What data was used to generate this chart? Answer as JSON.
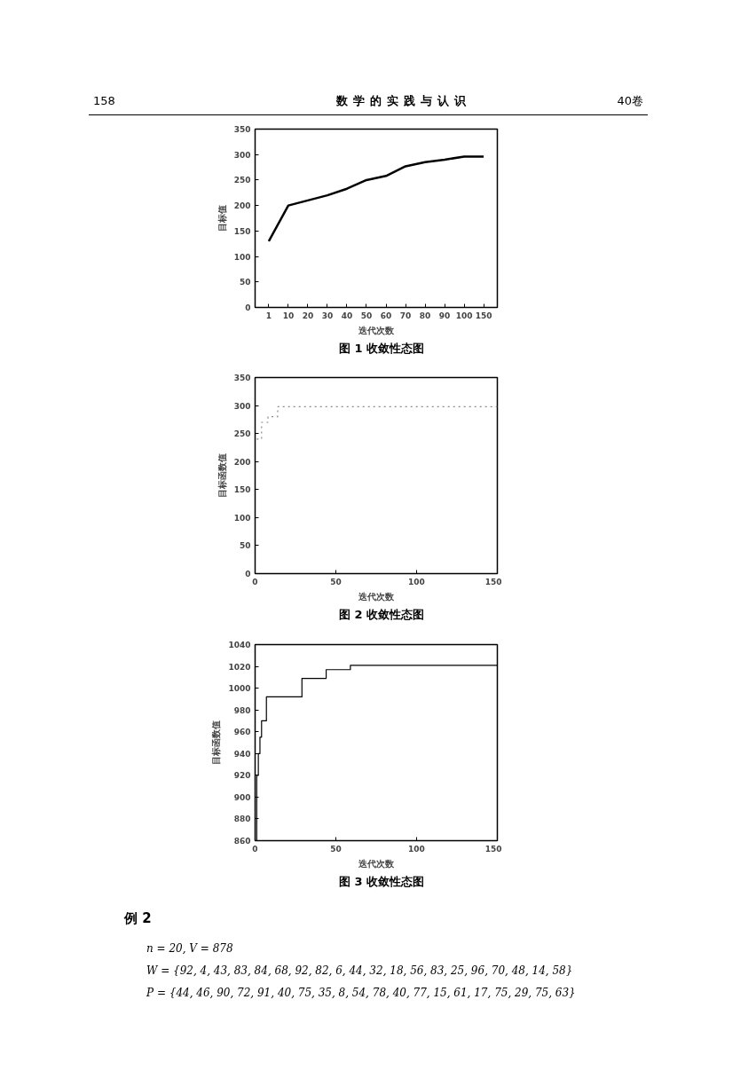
{
  "chart_data": [
    {
      "type": "line",
      "xlabel": "迭代次数",
      "ylabel": "目标值",
      "categories": [
        "1",
        "10",
        "20",
        "30",
        "40",
        "50",
        "60",
        "70",
        "80",
        "90",
        "100",
        "150"
      ],
      "series": [
        {
          "color": "#000000",
          "values": [
            130,
            200,
            210,
            220,
            233,
            250,
            258,
            277,
            285,
            290,
            296,
            296
          ]
        }
      ],
      "ylim": [
        0,
        350
      ],
      "yticks": [
        0,
        50,
        100,
        150,
        200,
        250,
        300,
        350
      ],
      "line_style": "solid",
      "annotations": [
        "158",
        "数学的实践与认识",
        "40卷",
        "图 1  收敛性态图"
      ]
    },
    {
      "type": "step",
      "xlabel": "迭代次数",
      "ylabel": "目标函数值",
      "series": [
        {
          "color": "#888888",
          "x": [
            1,
            4,
            8,
            14,
            150
          ],
          "values": [
            240,
            270,
            280,
            298,
            298
          ]
        }
      ],
      "xlim": [
        0,
        150
      ],
      "xticks": [
        0,
        50,
        100,
        150
      ],
      "ylim": [
        0,
        350
      ],
      "yticks": [
        0,
        50,
        100,
        150,
        200,
        250,
        300,
        350
      ],
      "line_style": "dotted",
      "annotations": [
        "图 2  收敛性态图"
      ]
    },
    {
      "type": "step",
      "xlabel": "迭代次数",
      "ylabel": "目标函数值",
      "series": [
        {
          "color": "#000000",
          "x": [
            0,
            1,
            2,
            3,
            4,
            7,
            29,
            44,
            59,
            150
          ],
          "values": [
            860,
            920,
            940,
            955,
            970,
            992,
            1009,
            1017,
            1021,
            1021
          ]
        }
      ],
      "xlim": [
        0,
        150
      ],
      "xticks": [
        0,
        50,
        100,
        150
      ],
      "ylim": [
        860,
        1040
      ],
      "yticks": [
        860,
        880,
        900,
        920,
        940,
        960,
        980,
        1000,
        1020,
        1040
      ],
      "line_style": "solid",
      "annotations": [
        "图 3  收敛性态图",
        "例 2",
        "n = 20,    V = 878",
        "W = {92, 4, 43, 83, 84, 68, 92, 82, 6, 44, 32, 18, 56, 83, 25, 96, 70, 48, 14, 58}",
        "P = {44, 46, 90, 72, 91, 40, 75, 35, 8, 54, 78, 40, 77, 15, 61, 17, 75, 29, 75, 63}"
      ]
    }
  ]
}
